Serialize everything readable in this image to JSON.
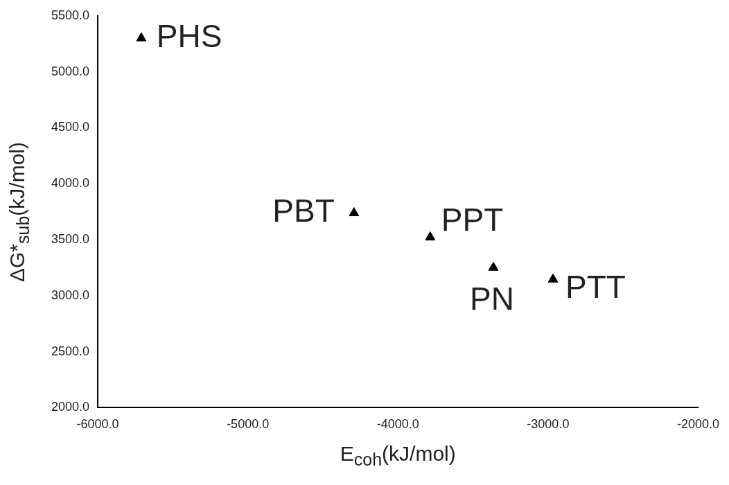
{
  "chart_data": {
    "type": "scatter",
    "xlabel": "E$_{coh}$(kJ/mol)",
    "ylabel": "ΔG*$_{sub}$(kJ/mol)",
    "x": [
      -5710,
      -4293,
      -3785,
      -3364,
      -2967
    ],
    "values": [
      5300,
      3738,
      3522,
      3251,
      3146
    ],
    "color": "#000000",
    "marker": "triangle",
    "grid": false,
    "legend": false,
    "xlim": [
      -6000,
      -2000
    ],
    "xticks": [
      {
        "value": -6000,
        "label": "-6000.0"
      },
      {
        "value": -5000,
        "label": "-5000.0"
      },
      {
        "value": -4000,
        "label": "-4000.0"
      },
      {
        "value": -3000,
        "label": "-3000.0"
      },
      {
        "value": -2000,
        "label": "-2000.0"
      }
    ],
    "ylim": [
      2000,
      5500
    ],
    "yticks": [
      {
        "value": 2000,
        "label": "2000.0"
      },
      {
        "value": 2500,
        "label": "2500.0"
      },
      {
        "value": 3000,
        "label": "3000.0"
      },
      {
        "value": 3500,
        "label": "3500.0"
      },
      {
        "value": 4000,
        "label": "4000.0"
      },
      {
        "value": 4500,
        "label": "4500.0"
      },
      {
        "value": 5000,
        "label": "5000.0"
      },
      {
        "value": 5500,
        "label": "5500.0"
      }
    ],
    "annotations": [
      {
        "text": "PHS",
        "x": -5710,
        "y": 5300
      },
      {
        "text": "PBT",
        "x": -4293,
        "y": 3738
      },
      {
        "text": "PPT",
        "x": -3785,
        "y": 3522
      },
      {
        "text": "PN",
        "x": -3364,
        "y": 3251
      },
      {
        "text": "PTT",
        "x": -2967,
        "y": 3146
      }
    ]
  }
}
